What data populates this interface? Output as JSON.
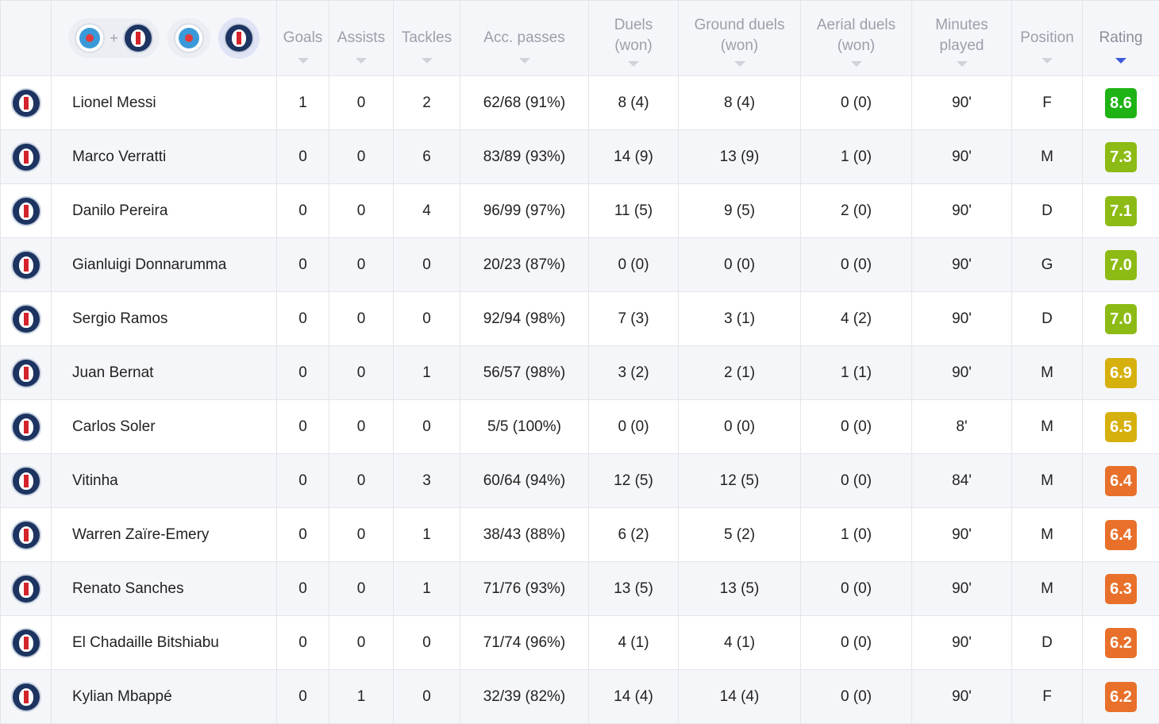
{
  "header": {
    "columns": [
      {
        "key": "goals",
        "label_lines": [
          "Goals"
        ]
      },
      {
        "key": "assists",
        "label_lines": [
          "Assists"
        ]
      },
      {
        "key": "tackles",
        "label_lines": [
          "Tackles"
        ]
      },
      {
        "key": "acc_passes",
        "label_lines": [
          "Acc. passes"
        ]
      },
      {
        "key": "duels",
        "label_lines": [
          "Duels",
          "(won)"
        ]
      },
      {
        "key": "ground_duels",
        "label_lines": [
          "Ground duels",
          "(won)"
        ]
      },
      {
        "key": "aerial_duels",
        "label_lines": [
          "Aerial duels",
          "(won)"
        ]
      },
      {
        "key": "minutes",
        "label_lines": [
          "Minutes",
          "played"
        ]
      },
      {
        "key": "position",
        "label_lines": [
          "Position"
        ]
      },
      {
        "key": "rating",
        "label_lines": [
          "Rating"
        ]
      }
    ],
    "active_sort": "rating"
  },
  "team_filters": [
    {
      "type": "combined",
      "icons": [
        "strasbourg-crest-icon",
        "psg-crest-icon"
      ]
    },
    {
      "type": "single",
      "icon": "strasbourg-crest-icon"
    },
    {
      "type": "single",
      "icon": "psg-crest-icon",
      "selected": true
    }
  ],
  "colors": {
    "rating_high": "#1fb316",
    "rating_good": "#8dbb15",
    "rating_avg": "#d6b00d",
    "rating_low": "#e8702a",
    "sort_active": "#3b5bdb"
  },
  "players": [
    {
      "name": "Lionel Messi",
      "goals": "1",
      "assists": "0",
      "tackles": "2",
      "acc_passes": "62/68 (91%)",
      "duels": "8 (4)",
      "ground_duels": "8 (4)",
      "aerial_duels": "0 (0)",
      "minutes": "90'",
      "position": "F",
      "rating": "8.6",
      "rating_color": "#1fb316"
    },
    {
      "name": "Marco Verratti",
      "goals": "0",
      "assists": "0",
      "tackles": "6",
      "acc_passes": "83/89 (93%)",
      "duels": "14 (9)",
      "ground_duels": "13 (9)",
      "aerial_duels": "1 (0)",
      "minutes": "90'",
      "position": "M",
      "rating": "7.3",
      "rating_color": "#8dbb15"
    },
    {
      "name": "Danilo Pereira",
      "goals": "0",
      "assists": "0",
      "tackles": "4",
      "acc_passes": "96/99 (97%)",
      "duels": "11 (5)",
      "ground_duels": "9 (5)",
      "aerial_duels": "2 (0)",
      "minutes": "90'",
      "position": "D",
      "rating": "7.1",
      "rating_color": "#8dbb15"
    },
    {
      "name": "Gianluigi Donnarumma",
      "goals": "0",
      "assists": "0",
      "tackles": "0",
      "acc_passes": "20/23 (87%)",
      "duels": "0 (0)",
      "ground_duels": "0 (0)",
      "aerial_duels": "0 (0)",
      "minutes": "90'",
      "position": "G",
      "rating": "7.0",
      "rating_color": "#8dbb15"
    },
    {
      "name": "Sergio Ramos",
      "goals": "0",
      "assists": "0",
      "tackles": "0",
      "acc_passes": "92/94 (98%)",
      "duels": "7 (3)",
      "ground_duels": "3 (1)",
      "aerial_duels": "4 (2)",
      "minutes": "90'",
      "position": "D",
      "rating": "7.0",
      "rating_color": "#8dbb15"
    },
    {
      "name": "Juan Bernat",
      "goals": "0",
      "assists": "0",
      "tackles": "1",
      "acc_passes": "56/57 (98%)",
      "duels": "3 (2)",
      "ground_duels": "2 (1)",
      "aerial_duels": "1 (1)",
      "minutes": "90'",
      "position": "M",
      "rating": "6.9",
      "rating_color": "#d6b00d"
    },
    {
      "name": "Carlos Soler",
      "goals": "0",
      "assists": "0",
      "tackles": "0",
      "acc_passes": "5/5 (100%)",
      "duels": "0 (0)",
      "ground_duels": "0 (0)",
      "aerial_duels": "0 (0)",
      "minutes": "8'",
      "position": "M",
      "rating": "6.5",
      "rating_color": "#d6b00d"
    },
    {
      "name": "Vitinha",
      "goals": "0",
      "assists": "0",
      "tackles": "3",
      "acc_passes": "60/64 (94%)",
      "duels": "12 (5)",
      "ground_duels": "12 (5)",
      "aerial_duels": "0 (0)",
      "minutes": "84'",
      "position": "M",
      "rating": "6.4",
      "rating_color": "#e8702a"
    },
    {
      "name": "Warren Zaïre-Emery",
      "goals": "0",
      "assists": "0",
      "tackles": "1",
      "acc_passes": "38/43 (88%)",
      "duels": "6 (2)",
      "ground_duels": "5 (2)",
      "aerial_duels": "1 (0)",
      "minutes": "90'",
      "position": "M",
      "rating": "6.4",
      "rating_color": "#e8702a"
    },
    {
      "name": "Renato Sanches",
      "goals": "0",
      "assists": "0",
      "tackles": "1",
      "acc_passes": "71/76 (93%)",
      "duels": "13 (5)",
      "ground_duels": "13 (5)",
      "aerial_duels": "0 (0)",
      "minutes": "90'",
      "position": "M",
      "rating": "6.3",
      "rating_color": "#e8702a"
    },
    {
      "name": "El Chadaille Bitshiabu",
      "goals": "0",
      "assists": "0",
      "tackles": "0",
      "acc_passes": "71/74 (96%)",
      "duels": "4 (1)",
      "ground_duels": "4 (1)",
      "aerial_duels": "0 (0)",
      "minutes": "90'",
      "position": "D",
      "rating": "6.2",
      "rating_color": "#e8702a"
    },
    {
      "name": "Kylian Mbappé",
      "goals": "0",
      "assists": "1",
      "tackles": "0",
      "acc_passes": "32/39 (82%)",
      "duels": "14 (4)",
      "ground_duels": "14 (4)",
      "aerial_duels": "0 (0)",
      "minutes": "90'",
      "position": "F",
      "rating": "6.2",
      "rating_color": "#e8702a"
    }
  ]
}
